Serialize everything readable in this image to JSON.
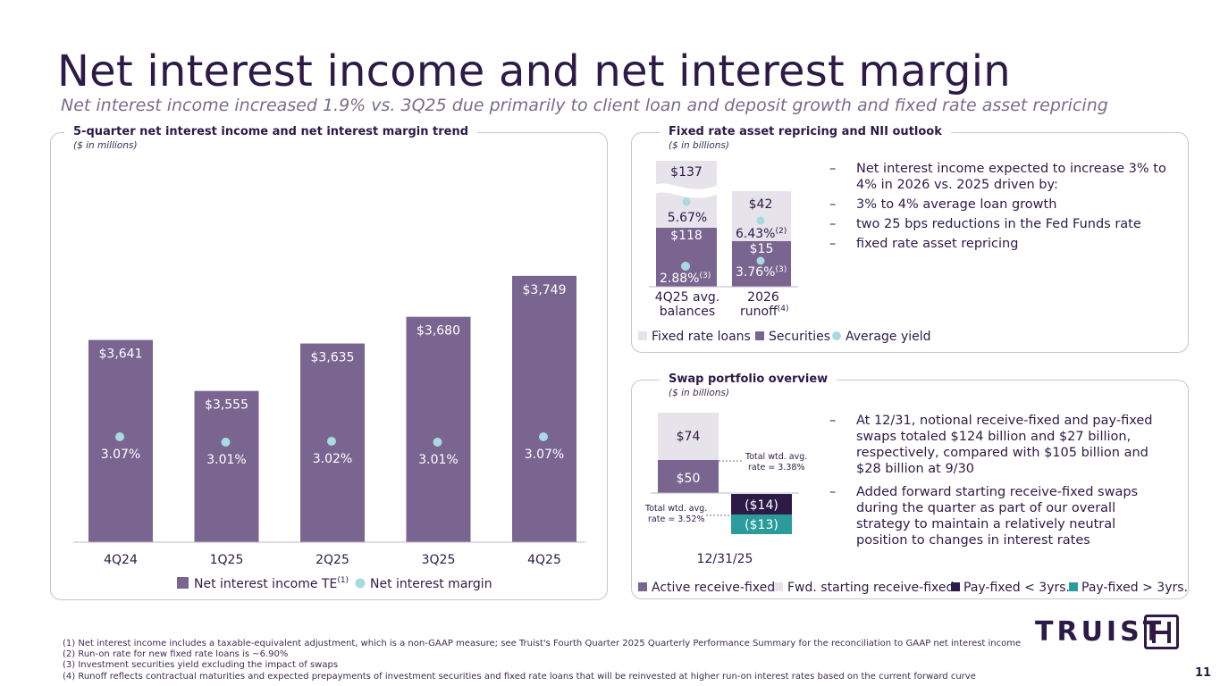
{
  "page": {
    "title": "Net interest income and net interest margin",
    "subtitle": "Net interest income increased 1.9% vs. 3Q25 due primarily to client loan and deposit growth and fixed rate asset repricing",
    "page_number": "11",
    "logo_text": "TRUIST"
  },
  "colors": {
    "purple": "#7a6591",
    "light_gray": "#e6e3ea",
    "dark_purple": "#2e1a47",
    "teal": "#2a9c9c",
    "yield_dot": "#a9dadf"
  },
  "nii_panel": {
    "heading": "5-quarter net interest income and net interest margin trend",
    "units": "($ in millions)"
  },
  "repricing_panel": {
    "heading": "Fixed rate asset repricing and NII outlook",
    "units": "($ in billions)",
    "bullets": {
      "main": "Net interest income expected to increase 3% to 4% in 2026 vs. 2025 driven by:",
      "sub": [
        "3% to 4% average loan growth",
        "two 25 bps reductions in the Fed Funds rate",
        "fixed rate asset repricing"
      ]
    }
  },
  "swap_panel": {
    "heading": "Swap portfolio overview",
    "units": "($ in billions)",
    "bullets": [
      "At 12/31, notional receive-fixed and pay-fixed swaps totaled $124 billion and $27 billion, respectively, compared with $105 billion and $28 billion at 9/30",
      "Added forward starting receive-fixed swaps during the quarter as part of our overall strategy to maintain a relatively neutral position to changes in interest rates"
    ]
  },
  "footnotes": [
    "(1)  Net interest income includes a taxable-equivalent adjustment, which is a non-GAAP measure; see Truist's Fourth Quarter 2025 Quarterly Performance Summary for the reconciliation to GAAP net interest income",
    "(2)  Run-on rate for new fixed rate loans is ~6.90%",
    "(3)  Investment securities yield excluding the impact of swaps",
    "(4)  Runoff reflects contractual maturities and expected prepayments of investment securities and fixed rate loans that will be reinvested at higher run-on interest rates based on the current forward curve"
  ],
  "chart_data": [
    {
      "id": "nii_trend",
      "type": "bar",
      "title": "5-quarter net interest income and net interest margin trend",
      "ylabel": "($ in millions)",
      "categories": [
        "4Q24",
        "1Q25",
        "2Q25",
        "3Q25",
        "4Q25"
      ],
      "series": [
        {
          "name": "Net interest income TE",
          "name_sup": "(1)",
          "values": [
            3641,
            3555,
            3635,
            3680,
            3749
          ],
          "labels": [
            "$3,641",
            "$3,555",
            "$3,635",
            "$3,680",
            "$3,749"
          ]
        },
        {
          "name": "Net interest margin",
          "type": "scatter",
          "values": [
            3.07,
            3.01,
            3.02,
            3.01,
            3.07
          ],
          "labels": [
            "3.07%",
            "3.01%",
            "3.02%",
            "3.01%",
            "3.07%"
          ]
        }
      ],
      "ylim": [
        3300,
        3800
      ]
    },
    {
      "id": "fixed_rate_repricing",
      "type": "bar",
      "stacked": true,
      "title": "Fixed rate asset repricing and NII outlook",
      "ylabel": "($ in billions)",
      "categories": [
        {
          "label_line1": "4Q25 avg.",
          "label_line2": "balances",
          "sup": ""
        },
        {
          "label_line1": "2026",
          "label_line2": "runoff",
          "sup": "(4)"
        }
      ],
      "series": [
        {
          "name": "Securities",
          "values": [
            118,
            15
          ],
          "labels": [
            "$118",
            "$15"
          ]
        },
        {
          "name": "Fixed rate loans",
          "values": [
            137,
            42
          ],
          "labels": [
            "$137",
            "$42"
          ]
        },
        {
          "name": "Average yield",
          "type": "scatter",
          "securities_yield": [
            "2.88%",
            "3.76%"
          ],
          "securities_yield_sup": [
            "(3)",
            "(3)"
          ],
          "loans_yield": [
            "5.67%",
            "6.43%"
          ],
          "loans_yield_sup": [
            "",
            "(2)"
          ]
        }
      ],
      "axis_break": true
    },
    {
      "id": "swap_portfolio",
      "type": "bar",
      "stacked": true,
      "title": "Swap portfolio overview",
      "ylabel": "($ in billions)",
      "categories": [
        "12/31/25"
      ],
      "series": [
        {
          "name": "Active receive-fixed",
          "values": [
            50
          ],
          "labels": [
            "$50"
          ]
        },
        {
          "name": "Fwd. starting receive-fixed",
          "values": [
            74
          ],
          "labels": [
            "$74"
          ]
        },
        {
          "name": "Pay-fixed < 3yrs.",
          "values": [
            -14
          ],
          "labels": [
            "($14)"
          ]
        },
        {
          "name": "Pay-fixed > 3yrs.",
          "values": [
            -13
          ],
          "labels": [
            "($13)"
          ]
        }
      ],
      "annotations": {
        "receive": {
          "line1": "Total wtd. avg.",
          "line2": "rate = 3.38%"
        },
        "pay": {
          "line1": "Total wtd. avg.",
          "line2": "rate = 3.52%"
        }
      }
    }
  ]
}
